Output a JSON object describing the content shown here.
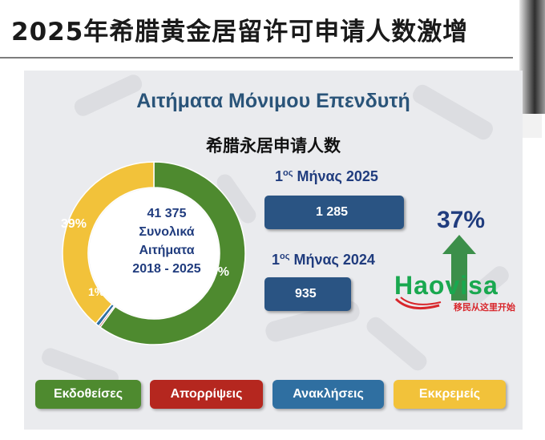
{
  "headline": "2025年希腊黄金居留许可申请人数激增",
  "slide": {
    "title": "Αιτήματα Μόνιμου Επενδυτή",
    "subtitle": "希腊永居申请人数",
    "center_total": "41 375",
    "center_line1": "Συνολικά",
    "center_line2": "Αιτήματα",
    "center_years": "2018 - 2025",
    "month_2025": {
      "prefix": "1",
      "sup": "ος",
      "rest": " Μήνας 2025",
      "value": "1 285"
    },
    "month_2024": {
      "prefix": "1",
      "sup": "ος",
      "rest": " Μήνας 2024",
      "value": "935"
    },
    "growth": "37%",
    "watermark": {
      "name": "Haovisa",
      "tagline": "移民从这里开始"
    }
  },
  "chart_data": {
    "type": "pie",
    "total": 41375,
    "series": [
      {
        "name": "Εκδοθείσες",
        "value": 60,
        "label": "60%",
        "color": "#4e8a2f"
      },
      {
        "name": "Απορρίψεις",
        "value": 0.3,
        "label": "",
        "color": "#b5271f"
      },
      {
        "name": "Ανακλήσεις",
        "value": 0.7,
        "label": "1%",
        "color": "#2f6fa1"
      },
      {
        "name": "Εκκρεμείς",
        "value": 39,
        "label": "39%",
        "color": "#f2c23a"
      }
    ]
  }
}
